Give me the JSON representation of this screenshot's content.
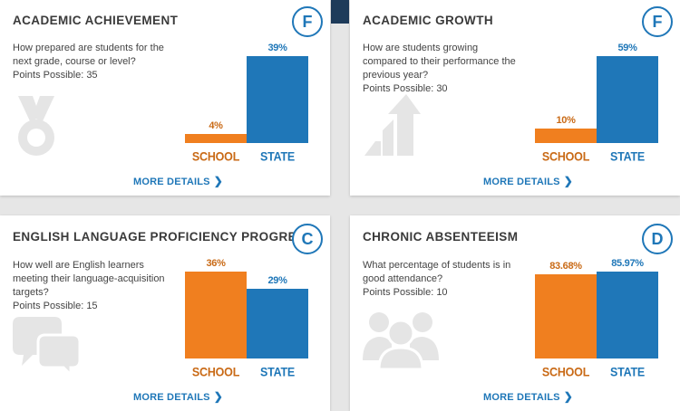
{
  "labels": {
    "school": "SCHOOL",
    "state": "STATE",
    "more_details": "MORE DETAILS",
    "chevron": "❯"
  },
  "colors": {
    "school": "#f07f1f",
    "state": "#1f77b8",
    "text": "#3a3a3a",
    "icon": "#e5e5e5"
  },
  "cards": [
    {
      "title": "ACADEMIC ACHIEVEMENT",
      "grade": "F",
      "question": "How prepared are students for the next grade, course or level?",
      "points": "Points Possible: 35",
      "icon": "medal-icon",
      "chart_data": {
        "type": "bar",
        "categories": [
          "SCHOOL",
          "STATE"
        ],
        "values": [
          4,
          39
        ],
        "value_labels": [
          "4%",
          "39%"
        ],
        "ylim": [
          0,
          39
        ]
      }
    },
    {
      "title": "ACADEMIC GROWTH",
      "grade": "F",
      "question": "How are students growing compared to their performance the previous year?",
      "points": "Points Possible: 30",
      "icon": "growth-arrow-icon",
      "chart_data": {
        "type": "bar",
        "categories": [
          "SCHOOL",
          "STATE"
        ],
        "values": [
          10,
          59
        ],
        "value_labels": [
          "10%",
          "59%"
        ],
        "ylim": [
          0,
          59
        ]
      }
    },
    {
      "title": "ENGLISH LANGUAGE PROFICIENCY PROGRESS",
      "grade": "C",
      "question": "How well are English learners meeting their language-acquisition targets?",
      "points": "Points Possible: 15",
      "icon": "speech-bubbles-icon",
      "chart_data": {
        "type": "bar",
        "categories": [
          "SCHOOL",
          "STATE"
        ],
        "values": [
          36,
          29
        ],
        "value_labels": [
          "36%",
          "29%"
        ],
        "ylim": [
          0,
          36
        ]
      }
    },
    {
      "title": "CHRONIC ABSENTEEISM",
      "grade": "D",
      "question": "What percentage of students is in good attendance?",
      "points": "Points Possible: 10",
      "icon": "people-group-icon",
      "chart_data": {
        "type": "bar",
        "categories": [
          "SCHOOL",
          "STATE"
        ],
        "values": [
          83.68,
          85.97
        ],
        "value_labels": [
          "83.68%",
          "85.97%"
        ],
        "ylim": [
          0,
          85.97
        ]
      }
    }
  ]
}
